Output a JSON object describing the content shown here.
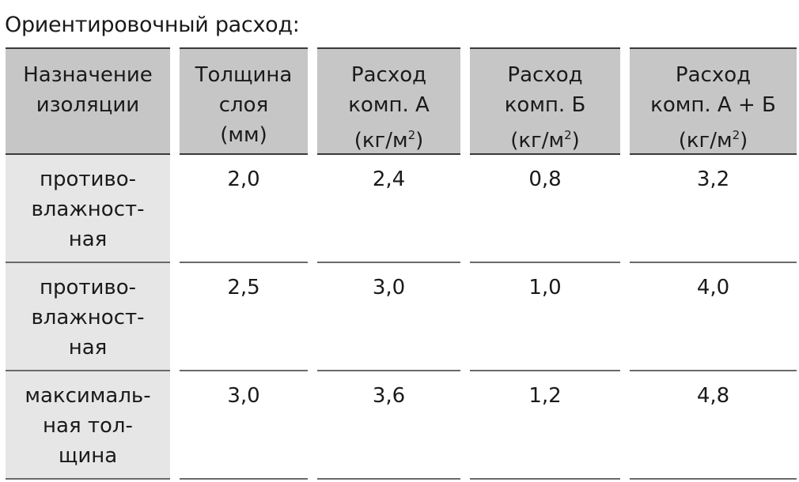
{
  "title": "Ориентировочный расход:",
  "headers": [
    {
      "text": "Назначение\nизоляции"
    },
    {
      "text": "Толщина\nслоя\n(мм)"
    },
    {
      "text": "Расход\nкомп. А\n(кг/м",
      "sup": "2",
      "tail": ")"
    },
    {
      "text": "Расход\nкомп. Б\n(кг/м",
      "sup": "2",
      "tail": ")"
    },
    {
      "text": "Расход\nкомп. А + Б\n(кг/м",
      "sup": "2",
      "tail": ")"
    }
  ],
  "rows": [
    [
      "противо-\nвлажност-\nная",
      "2,0",
      "2,4",
      "0,8",
      "3,2"
    ],
    [
      "противо-\nвлажност-\nная",
      "2,5",
      "3,0",
      "1,0",
      "4,0"
    ],
    [
      "максималь-\nная тол-\nщина",
      "3,0",
      "3,6",
      "1,2",
      "4,8"
    ]
  ]
}
